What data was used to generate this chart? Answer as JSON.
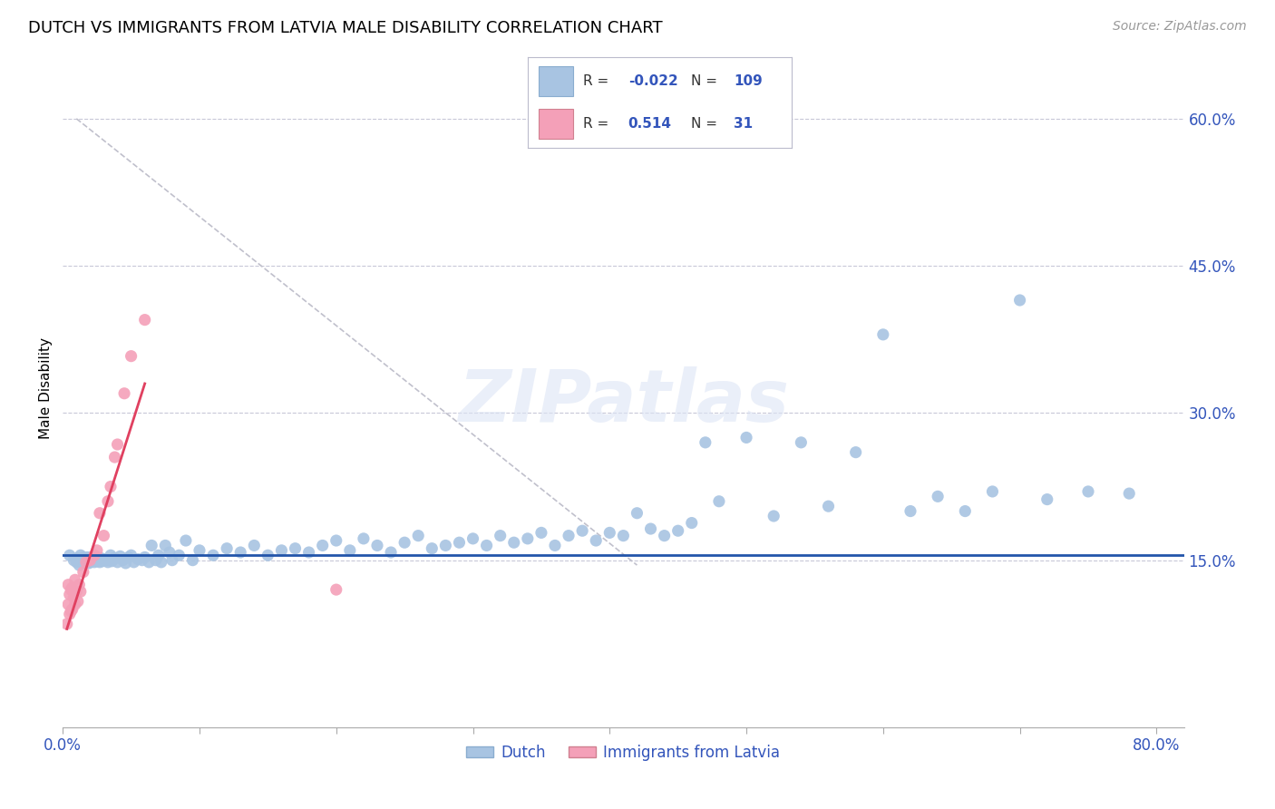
{
  "title": "DUTCH VS IMMIGRANTS FROM LATVIA MALE DISABILITY CORRELATION CHART",
  "source": "Source: ZipAtlas.com",
  "ylabel": "Male Disability",
  "xlim": [
    0.0,
    0.82
  ],
  "ylim": [
    -0.02,
    0.67
  ],
  "blue_color": "#a8c4e2",
  "pink_color": "#f4a0b8",
  "blue_line_color": "#2255aa",
  "pink_line_color": "#e04060",
  "dashed_line_color": "#c0c0cc",
  "watermark": "ZIPatlas",
  "blue_scatter_x": [
    0.005,
    0.008,
    0.01,
    0.01,
    0.012,
    0.013,
    0.013,
    0.014,
    0.015,
    0.015,
    0.016,
    0.016,
    0.017,
    0.018,
    0.018,
    0.019,
    0.019,
    0.02,
    0.02,
    0.021,
    0.022,
    0.023,
    0.024,
    0.025,
    0.025,
    0.026,
    0.027,
    0.028,
    0.029,
    0.03,
    0.032,
    0.033,
    0.035,
    0.036,
    0.038,
    0.04,
    0.042,
    0.044,
    0.046,
    0.048,
    0.05,
    0.052,
    0.055,
    0.058,
    0.06,
    0.063,
    0.065,
    0.068,
    0.07,
    0.072,
    0.075,
    0.078,
    0.08,
    0.085,
    0.09,
    0.095,
    0.1,
    0.11,
    0.12,
    0.13,
    0.14,
    0.15,
    0.16,
    0.17,
    0.18,
    0.19,
    0.2,
    0.21,
    0.22,
    0.23,
    0.24,
    0.25,
    0.26,
    0.27,
    0.28,
    0.29,
    0.3,
    0.31,
    0.32,
    0.33,
    0.34,
    0.35,
    0.36,
    0.37,
    0.38,
    0.39,
    0.4,
    0.41,
    0.42,
    0.43,
    0.44,
    0.45,
    0.46,
    0.47,
    0.48,
    0.5,
    0.52,
    0.54,
    0.56,
    0.58,
    0.6,
    0.62,
    0.64,
    0.66,
    0.68,
    0.7,
    0.72,
    0.75,
    0.78
  ],
  "blue_scatter_y": [
    0.155,
    0.15,
    0.148,
    0.152,
    0.145,
    0.15,
    0.155,
    0.148,
    0.15,
    0.153,
    0.147,
    0.152,
    0.148,
    0.15,
    0.153,
    0.147,
    0.151,
    0.148,
    0.152,
    0.149,
    0.15,
    0.148,
    0.151,
    0.149,
    0.153,
    0.15,
    0.148,
    0.152,
    0.149,
    0.151,
    0.15,
    0.148,
    0.155,
    0.149,
    0.152,
    0.148,
    0.154,
    0.15,
    0.147,
    0.153,
    0.155,
    0.148,
    0.151,
    0.15,
    0.153,
    0.148,
    0.165,
    0.15,
    0.155,
    0.148,
    0.165,
    0.158,
    0.15,
    0.155,
    0.17,
    0.15,
    0.16,
    0.155,
    0.162,
    0.158,
    0.165,
    0.155,
    0.16,
    0.162,
    0.158,
    0.165,
    0.17,
    0.16,
    0.172,
    0.165,
    0.158,
    0.168,
    0.175,
    0.162,
    0.165,
    0.168,
    0.172,
    0.165,
    0.175,
    0.168,
    0.172,
    0.178,
    0.165,
    0.175,
    0.18,
    0.17,
    0.178,
    0.175,
    0.198,
    0.182,
    0.175,
    0.18,
    0.188,
    0.27,
    0.21,
    0.275,
    0.195,
    0.27,
    0.205,
    0.26,
    0.38,
    0.2,
    0.215,
    0.2,
    0.22,
    0.415,
    0.212,
    0.22,
    0.218
  ],
  "pink_scatter_x": [
    0.003,
    0.004,
    0.004,
    0.005,
    0.005,
    0.006,
    0.006,
    0.007,
    0.007,
    0.008,
    0.009,
    0.009,
    0.01,
    0.011,
    0.012,
    0.013,
    0.015,
    0.017,
    0.02,
    0.023,
    0.025,
    0.027,
    0.03,
    0.033,
    0.035,
    0.038,
    0.04,
    0.045,
    0.05,
    0.06,
    0.2
  ],
  "pink_scatter_y": [
    0.085,
    0.105,
    0.125,
    0.095,
    0.115,
    0.098,
    0.12,
    0.1,
    0.122,
    0.112,
    0.105,
    0.13,
    0.118,
    0.108,
    0.125,
    0.118,
    0.138,
    0.148,
    0.15,
    0.155,
    0.16,
    0.198,
    0.175,
    0.21,
    0.225,
    0.255,
    0.268,
    0.32,
    0.358,
    0.395,
    0.12
  ],
  "pink_line_x0": 0.003,
  "pink_line_x1": 0.06,
  "pink_line_y0": 0.08,
  "pink_line_y1": 0.33,
  "blue_line_y": 0.155,
  "diag_line_x": [
    0.01,
    0.42
  ],
  "diag_line_y": [
    0.6,
    0.145
  ]
}
